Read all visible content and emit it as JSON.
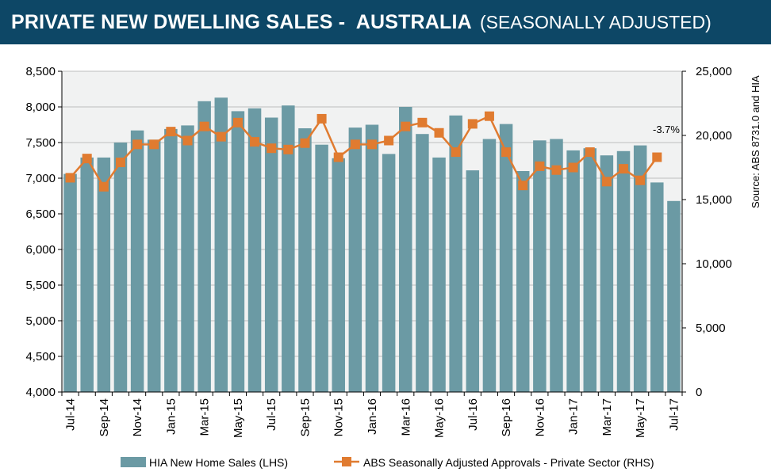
{
  "header": {
    "title": "PRIVATE NEW DWELLING SALES -  AUSTRALIA",
    "subtitle": "(SEASONALLY ADJUSTED)"
  },
  "chart_data": {
    "type": "bar",
    "categories": [
      "Jul-14",
      "Aug-14",
      "Sep-14",
      "Oct-14",
      "Nov-14",
      "Dec-14",
      "Jan-15",
      "Feb-15",
      "Mar-15",
      "Apr-15",
      "May-15",
      "Jun-15",
      "Jul-15",
      "Aug-15",
      "Sep-15",
      "Oct-15",
      "Nov-15",
      "Dec-15",
      "Jan-16",
      "Feb-16",
      "Mar-16",
      "Apr-16",
      "May-16",
      "Jun-16",
      "Jul-16",
      "Aug-16",
      "Sep-16",
      "Oct-16",
      "Nov-16",
      "Dec-16",
      "Jan-17",
      "Feb-17",
      "Mar-17",
      "Apr-17",
      "May-17",
      "Jun-17",
      "Jul-17"
    ],
    "x_tick_labels": [
      "Jul-14",
      "Sep-14",
      "Nov-14",
      "Jan-15",
      "Mar-15",
      "May-15",
      "Jul-15",
      "Sep-15",
      "Nov-15",
      "Jan-16",
      "Mar-16",
      "May-16",
      "Jul-16",
      "Sep-16",
      "Nov-16",
      "Jan-17",
      "Mar-17",
      "May-17",
      "Jul-17"
    ],
    "series": [
      {
        "name": "HIA New Home Sales (LHS)",
        "type": "bar",
        "axis": "left",
        "color": "#6b9aa4",
        "values": [
          7060,
          7290,
          7290,
          7500,
          7670,
          7540,
          7690,
          7740,
          8080,
          8130,
          7940,
          7980,
          7850,
          8020,
          7700,
          7470,
          7280,
          7710,
          7750,
          7340,
          8000,
          7620,
          7290,
          7880,
          7110,
          7550,
          7760,
          7100,
          7530,
          7550,
          7390,
          7420,
          7320,
          7380,
          7460,
          6940,
          6680
        ]
      },
      {
        "name": "ABS Seasonally Adjusted Approvals - Private Sector (RHS)",
        "type": "line",
        "axis": "right",
        "color": "#e07b30",
        "values": [
          16700,
          18200,
          16000,
          17900,
          19300,
          19300,
          20300,
          19600,
          20700,
          19900,
          21000,
          19500,
          19000,
          18900,
          19400,
          21300,
          18300,
          19300,
          19300,
          19600,
          20700,
          21000,
          20200,
          18700,
          20900,
          21500,
          18700,
          16100,
          17600,
          17300,
          17500,
          18700,
          16400,
          17400,
          16500,
          18300,
          null
        ]
      }
    ],
    "ylim_left": [
      4000,
      8500
    ],
    "yticks_left": [
      "4,000",
      "4,500",
      "5,000",
      "5,500",
      "6,000",
      "6,500",
      "7,000",
      "7,500",
      "8,000",
      "8,500"
    ],
    "ylim_right": [
      0,
      25000
    ],
    "yticks_right": [
      "0",
      "5,000",
      "10,000",
      "15,000",
      "20,000",
      "25,000"
    ],
    "annotation": "-3.7%",
    "source_note": "Source: ABS 8731.0 and HIA",
    "legend_position": "bottom",
    "grid": true
  }
}
